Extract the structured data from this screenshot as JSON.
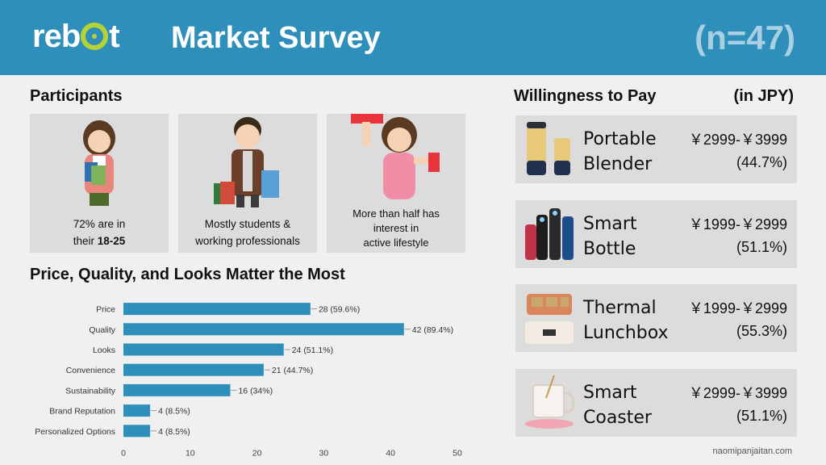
{
  "header": {
    "logo_text_start": "re",
    "logo_text_b": "b",
    "logo_text_end": "t",
    "title": "Market Survey",
    "sample_size": "(n=47)",
    "bg_color": "#2e8fbb",
    "accent_color": "#b5d334"
  },
  "participants": {
    "title": "Participants",
    "cards": [
      {
        "icon": "student-girl-icon",
        "line1_prefix": "72% are in",
        "line2_prefix": "their ",
        "line2_bold": "18-25"
      },
      {
        "icon": "working-professional-icon",
        "line1": "Mostly students &",
        "line2": "working professionals"
      },
      {
        "icon": "exercise-dumbbell-icon",
        "line1": "More than half has",
        "line2": "interest in",
        "line3": "active lifestyle"
      }
    ]
  },
  "factors": {
    "title": "Price, Quality, and Looks Matter the Most"
  },
  "chart_data": {
    "type": "bar",
    "orientation": "horizontal",
    "categories": [
      "Price",
      "Quality",
      "Looks",
      "Convenience",
      "Sustainability",
      "Brand Reputation",
      "Personalized Options"
    ],
    "values": [
      28,
      42,
      24,
      21,
      16,
      4,
      4
    ],
    "data_labels": [
      "28 (59.6%)",
      "42 (89.4%)",
      "24 (51.1%)",
      "21 (44.7%)",
      "16 (34%)",
      "4 (8.5%)",
      "4 (8.5%)"
    ],
    "xticks": [
      0,
      10,
      20,
      30,
      40,
      50
    ],
    "xlim": [
      0,
      50
    ],
    "bar_color": "#2e8fbb",
    "grid": false
  },
  "wtp": {
    "title": "Willingness to Pay",
    "unit": "(in JPY)",
    "items": [
      {
        "name_line1": "Portable",
        "name_line2": "Blender",
        "price": "￥2999-￥3999",
        "percent": "(44.7%)",
        "icon": "portable-blender-icon"
      },
      {
        "name_line1": "Smart",
        "name_line2": "Bottle",
        "price": "￥1999-￥2999",
        "percent": "(51.1%)",
        "icon": "smart-bottle-icon"
      },
      {
        "name_line1": "Thermal",
        "name_line2": "Lunchbox",
        "price": "￥1999-￥2999",
        "percent": "(55.3%)",
        "icon": "thermal-lunchbox-icon"
      },
      {
        "name_line1": "Smart",
        "name_line2": "Coaster",
        "price": "￥2999-￥3999",
        "percent": "(51.1%)",
        "icon": "smart-coaster-icon"
      }
    ]
  },
  "footer": {
    "credit": "naomipanjaitan.com"
  }
}
